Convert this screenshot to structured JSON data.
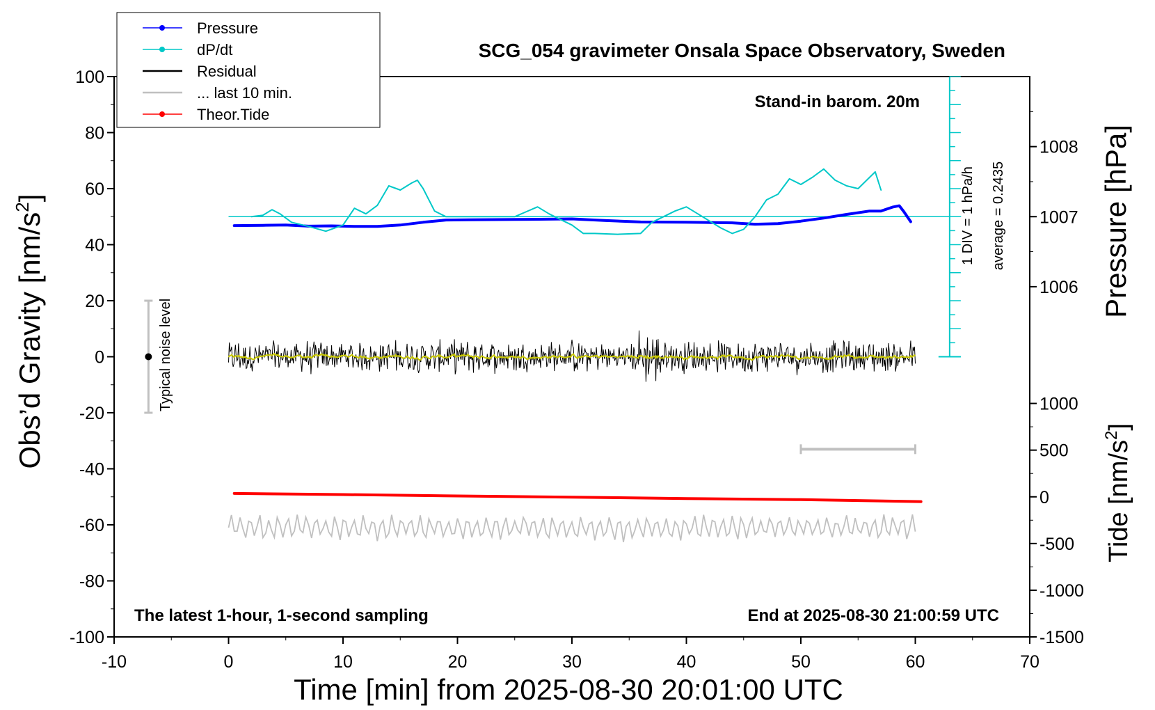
{
  "chart_data": {
    "type": "line",
    "title": "SCG_054 gravimeter Onsala Space Observatory, Sweden",
    "xlabel": "Time [min] from 2025-08-30 20:01:00 UTC",
    "ylabel_left_main": "Obs’d Gravity [nm/s",
    "ylabel_left_sup": "2",
    "ylabel_left_end": "]",
    "ylabel_right_top": "Pressure [hPa]",
    "ylabel_right_bottom_main": "Tide [nm/s",
    "ylabel_right_bottom_sup": "2",
    "ylabel_right_bottom_end": "]",
    "xlim": [
      -10,
      70
    ],
    "ylim": [
      -100,
      100
    ],
    "x_ticks": [
      "-10",
      "0",
      "10",
      "20",
      "30",
      "40",
      "50",
      "60",
      "70"
    ],
    "y_ticks": [
      "100",
      "80",
      "60",
      "40",
      "20",
      "0",
      "-20",
      "-40",
      "-60",
      "-80",
      "-100"
    ],
    "pressure_ticks": [
      "1008",
      "1007",
      "1006"
    ],
    "tide_ticks": [
      "1000",
      "500",
      "0",
      "-500",
      "-1000",
      "-1500"
    ],
    "annotations": {
      "stand_in": "Stand-in barom. 20m",
      "div_label": "1 DIV = 1 hPa/h",
      "average_label": "average = 0.2435",
      "noise_label": "Typical noise level",
      "latest": "The latest 1-hour, 1-second sampling",
      "end_at": "End at 2025-08-30 21:00:59 UTC"
    },
    "legend": [
      {
        "label": "Pressure",
        "color": "#0000ff",
        "marker": true
      },
      {
        "label": "dP/dt",
        "color": "#00c8c8",
        "marker": true
      },
      {
        "label": "Residual",
        "color": "#000000",
        "marker": false
      },
      {
        "label": "... last 10 min.",
        "color": "#c0c0c0",
        "marker": false
      },
      {
        "label": "Theor.Tide",
        "color": "#ff0000",
        "marker": true
      }
    ],
    "series": [
      {
        "name": "Pressure",
        "color": "#0000ff",
        "axis": "gravity-units",
        "x": [
          0.5,
          3,
          5,
          7,
          9,
          11,
          13,
          15,
          17,
          19,
          21,
          25,
          30,
          33,
          36,
          40,
          44,
          46,
          48,
          50,
          52,
          54,
          56,
          57,
          58,
          58.6,
          59,
          59.6
        ],
        "y": [
          46.8,
          46.9,
          47.0,
          46.6,
          46.7,
          46.5,
          46.5,
          47.0,
          48.0,
          48.8,
          48.9,
          49.0,
          49.2,
          48.6,
          48.1,
          48.0,
          47.8,
          47.3,
          47.5,
          48.4,
          49.5,
          50.8,
          52.0,
          52.0,
          53.4,
          53.9,
          51.8,
          48.2
        ]
      },
      {
        "name": "dP/dt",
        "color": "#00c8c8",
        "axis": "gravity-units",
        "x": [
          2,
          3,
          3.8,
          4.5,
          5.5,
          7,
          8.5,
          10,
          11,
          12,
          13,
          14,
          15,
          16,
          16.5,
          17,
          18,
          19,
          22,
          25,
          27,
          28,
          29,
          30,
          31,
          32,
          34,
          36,
          37,
          38,
          39,
          40,
          41,
          42,
          43,
          44,
          45,
          46,
          47,
          48,
          49,
          50,
          51,
          52,
          53,
          54,
          55,
          56,
          56.5,
          57
        ],
        "y": [
          50,
          50.5,
          52.5,
          51,
          48,
          46.5,
          44.8,
          47,
          53,
          51,
          54,
          61,
          59.5,
          62,
          63,
          60,
          52,
          50,
          50,
          50,
          53.5,
          51,
          49,
          47,
          44,
          44,
          43.7,
          44,
          48,
          50,
          52,
          53.5,
          51,
          48.5,
          46,
          44,
          45.5,
          50,
          56,
          58,
          63.5,
          61.5,
          64,
          67,
          63,
          61,
          60,
          64,
          66,
          59.5
        ]
      },
      {
        "name": "Theor.Tide",
        "color": "#ff0000",
        "axis": "gravity-units",
        "x": [
          0.5,
          10,
          20,
          30,
          40,
          50,
          60.5
        ],
        "y": [
          -48.8,
          -49.2,
          -49.7,
          -50.1,
          -50.6,
          -51.0,
          -51.7
        ]
      }
    ],
    "pressure_reference_y": 50,
    "dpdt_axis": {
      "x": 63,
      "y_top": 100,
      "y_bottom": 0,
      "div": 10
    },
    "residual": {
      "x_start": 0,
      "x_end": 60,
      "center": 0,
      "amplitude": 4.5,
      "smoothed_color": "#c8c800"
    },
    "last10": {
      "x_start": 0,
      "x_end": 60,
      "center": -61,
      "amplitude": 4,
      "color": "#c0c0c0"
    },
    "noise_bar": {
      "x": -7,
      "y_low": -20,
      "y_high": 20,
      "y_mid": 0
    },
    "range_bar": {
      "x_start": 50,
      "x_end": 60,
      "y": -33
    }
  }
}
